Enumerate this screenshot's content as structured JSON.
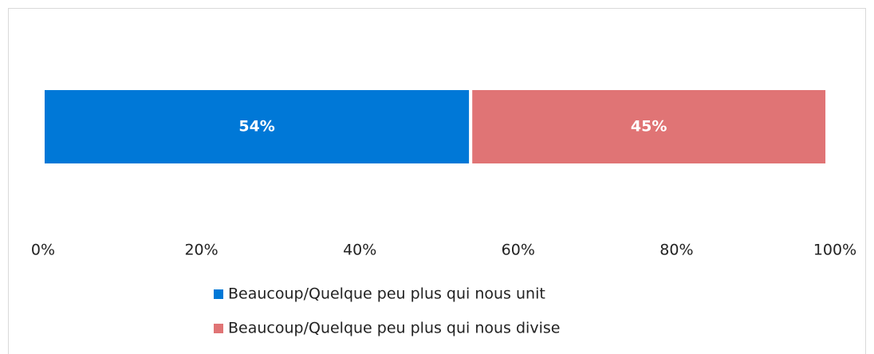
{
  "chart_data": {
    "type": "stacked_barh",
    "categories": [
      null
    ],
    "series": [
      {
        "name": "Beaucoup/Quelque peu plus qui nous unit",
        "color": "#0078d7",
        "values": [
          54
        ],
        "value_labels": [
          "54%"
        ]
      },
      {
        "name": "Beaucoup/Quelque peu plus qui nous divise",
        "color": "#e07475",
        "values": [
          45
        ],
        "value_labels": [
          "45%"
        ]
      }
    ],
    "xlim": [
      0,
      100
    ],
    "xticks": [
      {
        "value": 0,
        "label": "0%"
      },
      {
        "value": 20,
        "label": "20%"
      },
      {
        "value": 40,
        "label": "40%"
      },
      {
        "value": 60,
        "label": "60%"
      },
      {
        "value": 80,
        "label": "80%"
      },
      {
        "value": 100,
        "label": "100%"
      }
    ],
    "grid": false,
    "legend": "bottom"
  }
}
